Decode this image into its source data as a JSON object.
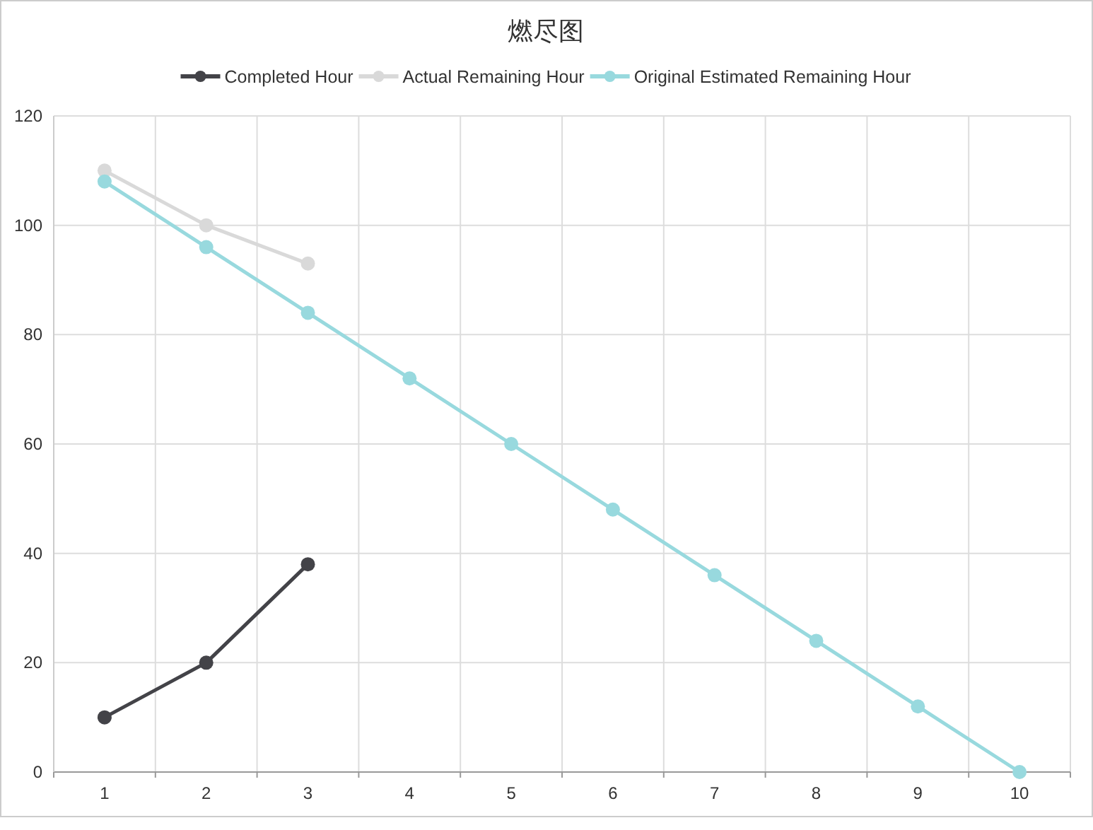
{
  "chart_data": {
    "type": "line",
    "title": "燃尽图",
    "categories": [
      "1",
      "2",
      "3",
      "4",
      "5",
      "6",
      "7",
      "8",
      "9",
      "10"
    ],
    "series": [
      {
        "name": "Completed Hour",
        "color": "#434348",
        "values": [
          10,
          20,
          38,
          null,
          null,
          null,
          null,
          null,
          null,
          null
        ]
      },
      {
        "name": "Actual Remaining Hour",
        "color": "#d9d9d9",
        "values": [
          110,
          100,
          93,
          null,
          null,
          null,
          null,
          null,
          null,
          null
        ]
      },
      {
        "name": "Original Estimated Remaining Hour",
        "color": "#98d9de",
        "values": [
          108,
          96,
          84,
          72,
          60,
          48,
          36,
          24,
          12,
          0
        ]
      }
    ],
    "ylim": [
      0,
      120
    ],
    "yticks": [
      0,
      20,
      40,
      60,
      80,
      100,
      120
    ],
    "grid": true,
    "legend": "top",
    "marker": "circle",
    "line_style": "solid"
  }
}
